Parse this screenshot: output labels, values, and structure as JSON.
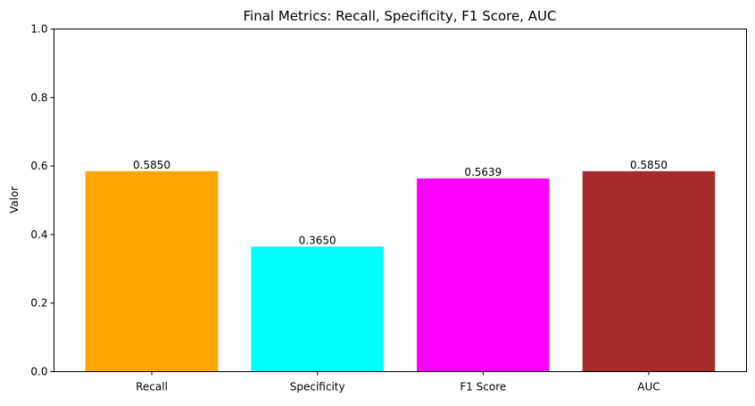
{
  "chart_data": {
    "type": "bar",
    "title": "Final Metrics: Recall, Specificity, F1 Score, AUC",
    "xlabel": "",
    "ylabel": "Valor",
    "ylim": [
      0,
      1
    ],
    "yticks": [
      0.0,
      0.2,
      0.4,
      0.6,
      0.8,
      1.0
    ],
    "ytick_labels": [
      "0.0",
      "0.2",
      "0.4",
      "0.6",
      "0.8",
      "1.0"
    ],
    "categories": [
      "Recall",
      "Specificity",
      "F1 Score",
      "AUC"
    ],
    "values": [
      0.585,
      0.365,
      0.5639,
      0.585
    ],
    "value_labels": [
      "0.5850",
      "0.3650",
      "0.5639",
      "0.5850"
    ],
    "colors": [
      "#ffa500",
      "#00ffff",
      "#ff00ff",
      "#a52a2a"
    ],
    "grid": false,
    "legend": "none"
  }
}
